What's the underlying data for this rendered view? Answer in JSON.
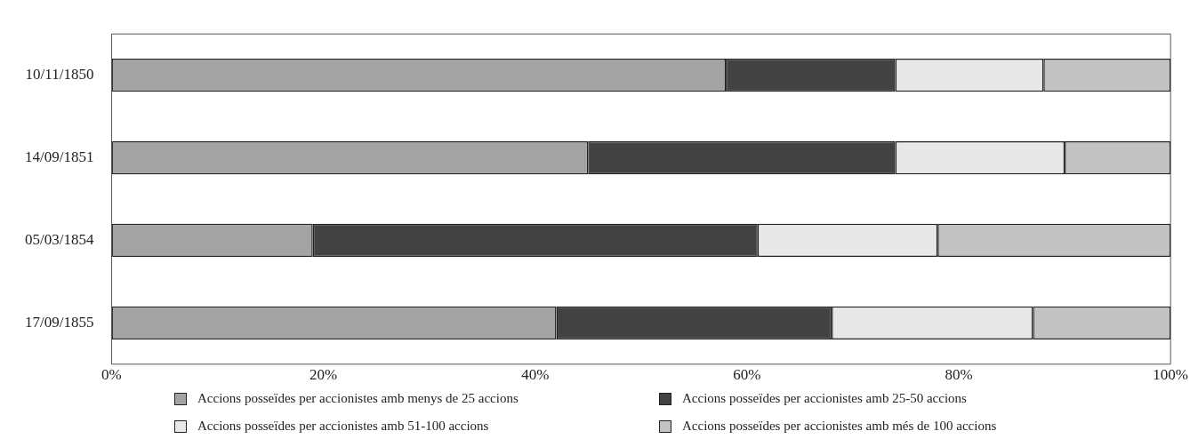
{
  "chart_data": {
    "type": "bar",
    "orientation": "horizontal",
    "stacked": true,
    "categories": [
      "10/11/1850",
      "14/09/1851",
      "05/03/1854",
      "17/09/1855"
    ],
    "series": [
      {
        "name": "Accions posseïdes per accionistes amb menys de 25 accions",
        "color": "#a3a3a3",
        "values": [
          58,
          45,
          19,
          42
        ]
      },
      {
        "name": "Accions posseïdes per accionistes amb 25-50 accions",
        "color": "#424242",
        "values": [
          16,
          29,
          42,
          26
        ]
      },
      {
        "name": "Accions posseïdes per accionistes amb 51-100 accions",
        "color": "#e8e8e8",
        "values": [
          14,
          16,
          17,
          19
        ]
      },
      {
        "name": "Accions posseïdes per accionistes amb més de 100 accions",
        "color": "#c2c2c2",
        "values": [
          12,
          10,
          22,
          13
        ]
      }
    ],
    "xlim": [
      0,
      100
    ],
    "xticks": [
      {
        "value": 0,
        "label": "0%"
      },
      {
        "value": 20,
        "label": "20%"
      },
      {
        "value": 40,
        "label": "40%"
      },
      {
        "value": 60,
        "label": "60%"
      },
      {
        "value": 80,
        "label": "80%"
      },
      {
        "value": 100,
        "label": "100%"
      }
    ],
    "grid": false,
    "legend": "bottom"
  }
}
